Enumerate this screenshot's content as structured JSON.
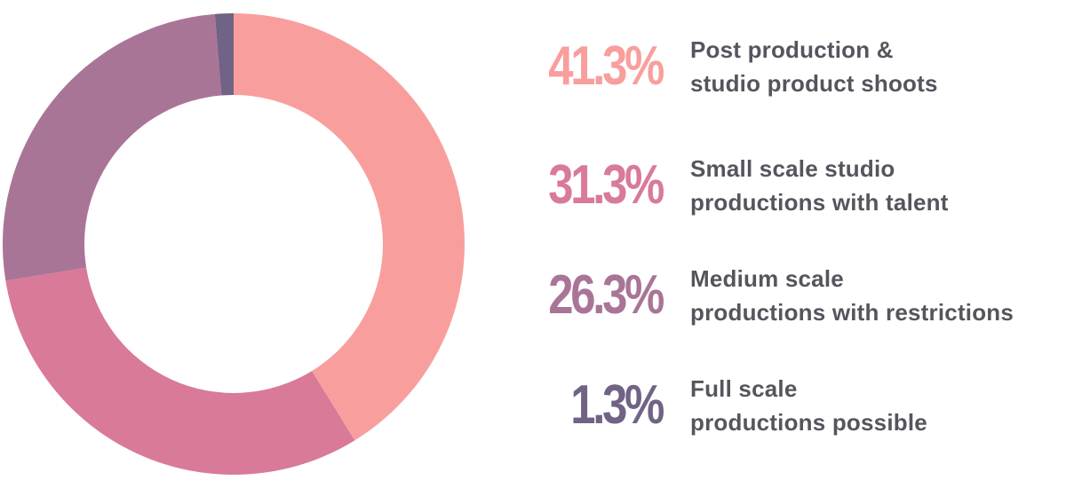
{
  "chart_data": {
    "type": "pie",
    "variant": "donut",
    "title": "",
    "start_angle_deg": 0,
    "direction": "clockwise",
    "slices": [
      {
        "value": 41.3,
        "label_pct": "41.3%",
        "label_lines": [
          "Post production &",
          "studio product shoots"
        ],
        "color": "#f89f9e"
      },
      {
        "value": 31.3,
        "label_pct": "31.3%",
        "label_lines": [
          "Small scale studio",
          "productions with talent"
        ],
        "color": "#d87a98"
      },
      {
        "value": 26.3,
        "label_pct": "26.3%",
        "label_lines": [
          "Medium scale",
          "productions with restrictions"
        ],
        "color": "#a97597"
      },
      {
        "value": 1.3,
        "label_pct": "1.3%",
        "label_lines": [
          "Full scale",
          "productions possible"
        ],
        "color": "#706385"
      }
    ],
    "legend_placement": "right"
  },
  "colors": {
    "label_text": "#57545e",
    "background": "#ffffff"
  }
}
